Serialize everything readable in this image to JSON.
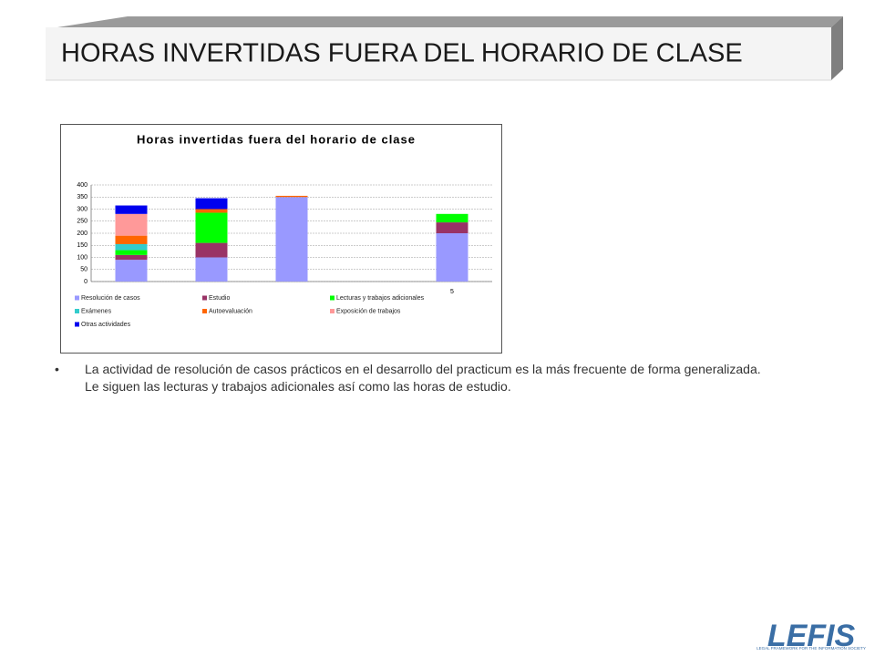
{
  "header": {
    "title": "HORAS INVERTIDAS FUERA DEL HORARIO DE CLASE"
  },
  "chart_data": {
    "type": "stacked-bar",
    "title": "Horas invertidas fuera del horario de clase",
    "categories": [
      null,
      null,
      null,
      null,
      "5"
    ],
    "series": [
      {
        "name": "Resolución de casos",
        "color": "#9999ff",
        "values": [
          90,
          100,
          350,
          0,
          200
        ]
      },
      {
        "name": "Estudio",
        "color": "#993366",
        "values": [
          20,
          60,
          0,
          0,
          45
        ]
      },
      {
        "name": "Lecturas y trabajos adicionales",
        "color": "#00ff00",
        "values": [
          20,
          125,
          0,
          0,
          35
        ]
      },
      {
        "name": "Exámenes",
        "color": "#33cccc",
        "values": [
          25,
          0,
          0,
          0,
          0
        ]
      },
      {
        "name": "Autoevaluación",
        "color": "#ff6600",
        "values": [
          35,
          15,
          5,
          0,
          0
        ]
      },
      {
        "name": "Exposición de trabajos",
        "color": "#ff9999",
        "values": [
          90,
          0,
          0,
          0,
          0
        ]
      },
      {
        "name": "Otras actividades",
        "color": "#0000ee",
        "values": [
          35,
          45,
          0,
          0,
          0
        ]
      }
    ],
    "ylim": [
      0,
      400
    ],
    "yticks": [
      0,
      50,
      100,
      150,
      200,
      250,
      300,
      350,
      400
    ],
    "grid": true
  },
  "bullets": [
    "La actividad de resolución de casos prácticos en el desarrollo del practicum es la más frecuente de forma generalizada. Le siguen las lecturas y trabajos adicionales así como las horas de estudio."
  ],
  "logo": {
    "name": "LEFIS",
    "tagline": "LEGAL FRAMEWORK FOR THE INFORMATION SOCIETY"
  }
}
